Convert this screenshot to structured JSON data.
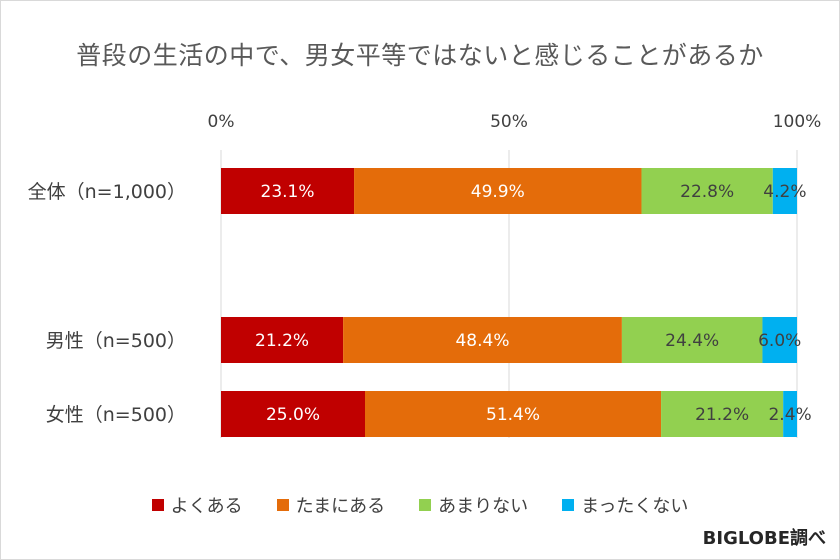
{
  "chart_data": {
    "type": "bar",
    "orientation": "horizontal-stacked-100",
    "title": "普段の生活の中で、男女平等ではないと感じることがあるか",
    "xlim": [
      0,
      100
    ],
    "ticks": [
      "0%",
      "50%",
      "100%"
    ],
    "categories": [
      "全体（n=1,000）",
      "男性（n=500）",
      "女性（n=500）"
    ],
    "series": [
      {
        "name": "よくある",
        "color": "#c00000",
        "label_color": "#ffffff",
        "values": [
          23.1,
          21.2,
          25.0
        ],
        "labels": [
          "23.1%",
          "21.2%",
          "25.0%"
        ]
      },
      {
        "name": "たまにある",
        "color": "#e46c0a",
        "label_color": "#ffffff",
        "values": [
          49.9,
          48.4,
          51.4
        ],
        "labels": [
          "49.9%",
          "48.4%",
          "51.4%"
        ]
      },
      {
        "name": "あまりない",
        "color": "#92d050",
        "label_color": "#404040",
        "values": [
          22.8,
          24.4,
          21.2
        ],
        "labels": [
          "22.8%",
          "24.4%",
          "21.2%"
        ]
      },
      {
        "name": "まったくない",
        "color": "#00b0f0",
        "label_color": "#404040",
        "values": [
          4.2,
          6.0,
          2.4
        ],
        "labels": [
          "4.2%",
          "6.0%",
          "2.4%"
        ]
      }
    ],
    "legend_position": "bottom"
  },
  "source": "BIGLOBE調べ"
}
